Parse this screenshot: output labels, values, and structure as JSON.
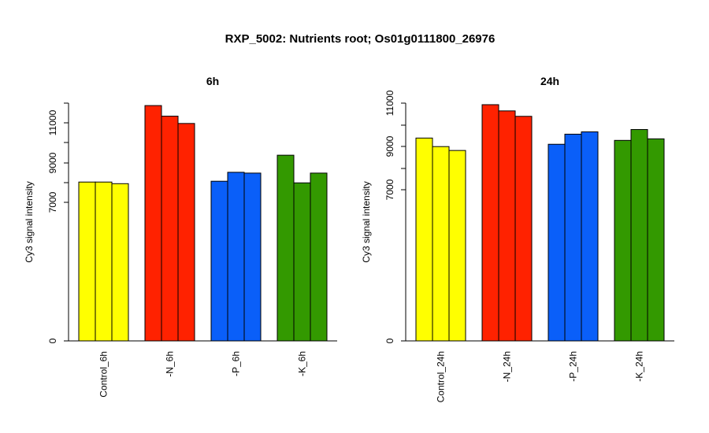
{
  "title": "RXP_5002: Nutrients root; Os01g0111800_26976",
  "group_colors": [
    "#ffff00",
    "#ff2200",
    "#0a5ff9",
    "#339900"
  ],
  "chart_data": [
    {
      "type": "bar",
      "title": "6h",
      "ylabel": "Cy3 signal intensity",
      "xlabel": "",
      "categories": [
        "Control_6h",
        "-N_6h",
        "-P_6h",
        "-K_6h"
      ],
      "series": [
        {
          "values": [
            7150,
            11850,
            7200,
            8800
          ]
        },
        {
          "values": [
            7150,
            11200,
            7750,
            7100
          ]
        },
        {
          "values": [
            7050,
            10750,
            7700,
            7700
          ]
        }
      ],
      "yticks": [
        "0",
        "7000",
        "9000",
        "11000"
      ],
      "segments": [
        {
          "from": 0,
          "to": 6000
        },
        {
          "from": 6000,
          "to": 12000
        }
      ],
      "grid": false
    },
    {
      "type": "bar",
      "title": "24h",
      "ylabel": "Cy3 signal intensity",
      "xlabel": "",
      "categories": [
        "Control_24h",
        "-N_24h",
        "-P_24h",
        "-K_24h"
      ],
      "series": [
        {
          "values": [
            8750,
            10900,
            8350,
            8600
          ]
        },
        {
          "values": [
            8200,
            10500,
            9000,
            9300
          ]
        },
        {
          "values": [
            7950,
            10150,
            9150,
            8700
          ]
        }
      ],
      "yticks": [
        "0",
        "7000",
        "9000",
        "11000"
      ],
      "segments": [
        {
          "from": 0,
          "to": 4000
        },
        {
          "from": 4000,
          "to": 11000
        }
      ],
      "grid": false
    }
  ]
}
